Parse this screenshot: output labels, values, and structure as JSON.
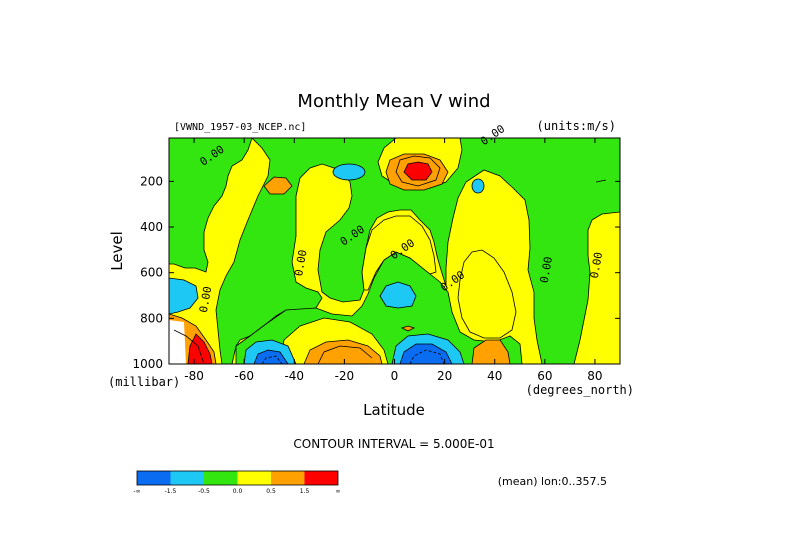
{
  "chart_data": {
    "type": "heatmap",
    "title": "Monthly Mean V wind",
    "dataset": "[VWND_1957-03_NCEP.nc]",
    "units": "(units:m/s)",
    "xlabel": "Latitude",
    "x_units": "(degrees_north)",
    "ylabel": "Level",
    "y_units": "(millibar)",
    "xlim": [
      -90,
      90
    ],
    "ylim": [
      1000,
      10
    ],
    "x_ticks": [
      -80,
      -60,
      -40,
      -20,
      0,
      20,
      40,
      60,
      80
    ],
    "x_tick_labels": [
      "-80",
      "-60",
      "-40",
      "-20",
      "0",
      "20",
      "40",
      "60",
      "80"
    ],
    "y_ticks": [
      200,
      400,
      600,
      800,
      1000
    ],
    "y_tick_labels": [
      "200",
      "400",
      "600",
      "800",
      "1000"
    ],
    "contour_interval_text": "CONTOUR INTERVAL = 5.000E-01",
    "contour_labels": [
      {
        "text": "0.00",
        "lat": -72,
        "level": 100
      },
      {
        "text": "0.00",
        "lat": -74,
        "level": 720
      },
      {
        "text": "0.00",
        "lat": -36,
        "level": 560
      },
      {
        "text": "0.00",
        "lat": -16,
        "level": 450
      },
      {
        "text": "0.00",
        "lat": 4,
        "level": 510
      },
      {
        "text": "0.00",
        "lat": 24,
        "level": 650
      },
      {
        "text": "0.00",
        "lat": 40,
        "level": 10
      },
      {
        "text": "0.00",
        "lat": 62,
        "level": 590
      },
      {
        "text": "0.00",
        "lat": 82,
        "level": 570
      }
    ],
    "features": [
      {
        "value": 1.75,
        "category": ">1.0",
        "lat": 12,
        "level": 160
      },
      {
        "value": 0.75,
        "category": "0.5..1.0",
        "lat": -44,
        "level": 230
      },
      {
        "value": -0.75,
        "category": "-1.0..-0.5",
        "lat": -22,
        "level": 150
      },
      {
        "value": -0.75,
        "category": "-1.0..-0.5",
        "lat": 42,
        "level": 210
      },
      {
        "value": -0.75,
        "category": "-1.0..-0.5",
        "lat": 4,
        "level": 760
      },
      {
        "value": -0.75,
        "category": "-1.0..-0.5",
        "lat": -84,
        "level": 730
      },
      {
        "value": -2.0,
        "category": "<-1.5",
        "lat": -49,
        "level": 990
      },
      {
        "value": -2.0,
        "category": "<-1.5",
        "lat": 12,
        "level": 975
      },
      {
        "value": 0.75,
        "category": "0.5..1.0",
        "lat": -16,
        "level": 975
      },
      {
        "value": 0.75,
        "category": "0.5..1.0",
        "lat": 41,
        "level": 960
      },
      {
        "value": 2.0,
        "category": ">1.0",
        "lat": -84,
        "level": 960
      }
    ],
    "colorbar": {
      "colors": [
        "#0a6cf0",
        "#1ec8f5",
        "#33e60f",
        "#ffff00",
        "#ffa100",
        "#ff0000"
      ],
      "labels": [
        "-∞",
        "-1.5",
        "-0.5",
        "0.0",
        "0.5",
        "1.5",
        "∞"
      ]
    },
    "footer_note": "(mean) lon:0..357.5"
  }
}
